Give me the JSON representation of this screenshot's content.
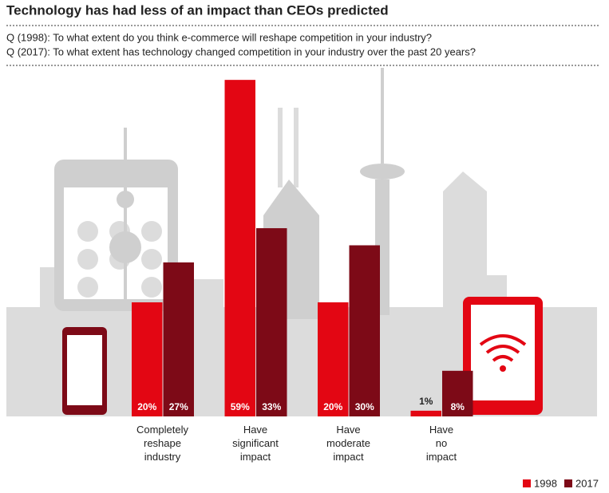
{
  "chart_data": {
    "type": "bar",
    "title": "Technology has had less of an impact than CEOs predicted",
    "subtitle": [
      "Q (1998): To what extent do you think e-commerce will reshape competition in your industry?",
      "Q (2017): To what extent has technology changed competition in your industry over the past 20 years?"
    ],
    "categories": [
      "Completely reshape industry",
      "Have significant impact",
      "Have moderate impact",
      "Have no impact"
    ],
    "series": [
      {
        "name": "1998",
        "color": "#e30613",
        "values": [
          20,
          59,
          20,
          1
        ],
        "value_labels": [
          "20%",
          "59%",
          "20%",
          "1%"
        ]
      },
      {
        "name": "2017",
        "color": "#7d0a17",
        "values": [
          27,
          33,
          30,
          8
        ],
        "value_labels": [
          "27%",
          "33%",
          "30%",
          "8%"
        ]
      }
    ]
  }
}
